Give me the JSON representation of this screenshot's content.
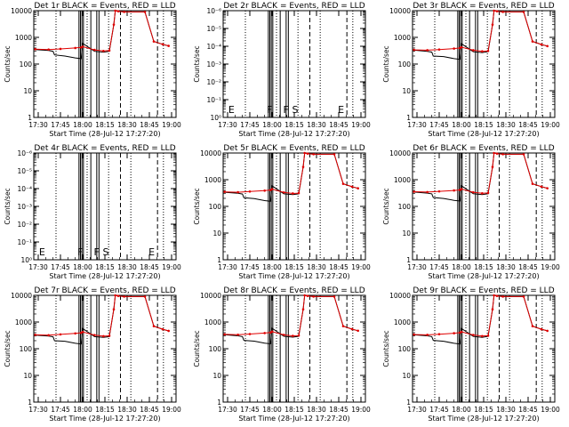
{
  "colors": {
    "events": "#000000",
    "lld": "#e00000"
  },
  "chart_data": [
    {
      "type": "line",
      "title": "Det 1r BLACK = Events, RED = LLD",
      "xlabel": "Start Time (28-Jul-12 17:27:20)",
      "ylabel": "Counts/sec",
      "yscale": "log",
      "ylim": [
        1,
        10000
      ],
      "ytick_labels": [
        "1",
        "10",
        "100",
        "1000",
        "10000"
      ],
      "xlim": [
        "17:27",
        "19:03"
      ],
      "xtick_labels": [
        "17:30",
        "17:45",
        "18:00",
        "18:15",
        "18:30",
        "18:45",
        "19:00"
      ],
      "grid": false,
      "has_data": true,
      "mode_letters": [],
      "series": [
        {
          "name": "Events",
          "x": [
            "17:28",
            "17:37",
            "17:40",
            "17:41",
            "17:48",
            "17:55",
            "17:59",
            "18:00",
            "18:08",
            "18:14",
            "18:18",
            "18:21",
            "18:22",
            "18:24",
            "18:28",
            "18:42",
            "18:48",
            "18:54",
            "18:58"
          ],
          "values": [
            350,
            320,
            300,
            220,
            200,
            170,
            160,
            600,
            300,
            280,
            300,
            3000,
            10000,
            9500,
            9000,
            9000,
            700,
            550,
            480
          ]
        },
        {
          "name": "LLD",
          "x": [
            "17:28",
            "17:37",
            "17:45",
            "17:55",
            "17:59",
            "18:00",
            "18:08",
            "18:14",
            "18:18",
            "18:21",
            "18:22",
            "18:24",
            "18:28",
            "18:42",
            "18:48",
            "18:54",
            "18:58"
          ],
          "values": [
            360,
            350,
            370,
            400,
            420,
            450,
            340,
            310,
            320,
            3000,
            10000,
            9500,
            9000,
            9000,
            700,
            550,
            480
          ]
        }
      ]
    },
    {
      "type": "line",
      "title": "Det 2r BLACK = Events, RED = LLD",
      "xlabel": "Start Time (28-Jul-12 17:27:20)",
      "ylabel": "Counts/sec",
      "yscale": "log",
      "ylim": [
        1e-06,
        1
      ],
      "ytick_labels": [
        "10⁰",
        "10⁻¹",
        "10⁻²",
        "10⁻³",
        "10⁻⁴",
        "10⁻⁵",
        "10⁻⁶"
      ],
      "xlim": [
        "17:27",
        "19:03"
      ],
      "xtick_labels": [
        "17:30",
        "17:45",
        "18:00",
        "18:15",
        "18:30",
        "18:45",
        "19:00"
      ],
      "grid": false,
      "has_data": false,
      "mode_letters": [
        "E",
        "F",
        "F",
        "S",
        "E"
      ],
      "series": []
    },
    {
      "type": "line",
      "title": "Det 3r BLACK = Events, RED = LLD",
      "xlabel": "Start Time (28-Jul-12 17:27:20)",
      "ylabel": "Counts/sec",
      "yscale": "log",
      "ylim": [
        1,
        10000
      ],
      "ytick_labels": [
        "1",
        "10",
        "100",
        "1000",
        "10000"
      ],
      "xlim": [
        "17:27",
        "19:03"
      ],
      "xtick_labels": [
        "17:30",
        "17:45",
        "18:00",
        "18:15",
        "18:30",
        "18:45",
        "19:00"
      ],
      "grid": false,
      "has_data": true,
      "mode_letters": [],
      "series": [
        {
          "name": "Events",
          "x": [
            "17:28",
            "17:37",
            "17:40",
            "17:41",
            "17:48",
            "17:55",
            "17:59",
            "18:00",
            "18:08",
            "18:14",
            "18:18",
            "18:21",
            "18:22",
            "18:24",
            "18:28",
            "18:42",
            "18:48",
            "18:54",
            "18:58"
          ],
          "values": [
            330,
            300,
            280,
            200,
            190,
            160,
            150,
            580,
            290,
            270,
            290,
            3000,
            10000,
            9500,
            9000,
            9000,
            700,
            540,
            470
          ]
        },
        {
          "name": "LLD",
          "x": [
            "17:28",
            "17:37",
            "17:45",
            "17:55",
            "17:59",
            "18:00",
            "18:08",
            "18:14",
            "18:18",
            "18:21",
            "18:22",
            "18:24",
            "18:28",
            "18:42",
            "18:48",
            "18:54",
            "18:58"
          ],
          "values": [
            340,
            330,
            350,
            380,
            400,
            430,
            330,
            300,
            310,
            3000,
            10000,
            9500,
            9000,
            9000,
            700,
            540,
            470
          ]
        }
      ]
    },
    {
      "type": "line",
      "title": "Det 4r BLACK = Events, RED = LLD",
      "xlabel": "Start Time (28-Jul-12 17:27:20)",
      "ylabel": "Counts/sec",
      "yscale": "log",
      "ylim": [
        1e-06,
        1
      ],
      "ytick_labels": [
        "10⁰",
        "10⁻¹",
        "10⁻²",
        "10⁻³",
        "10⁻⁴",
        "10⁻⁵",
        "10⁻⁶"
      ],
      "xlim": [
        "17:27",
        "19:03"
      ],
      "xtick_labels": [
        "17:30",
        "17:45",
        "18:00",
        "18:15",
        "18:30",
        "18:45",
        "19:00"
      ],
      "grid": false,
      "has_data": false,
      "mode_letters": [
        "E",
        "F",
        "F",
        "S",
        "E"
      ],
      "series": []
    },
    {
      "type": "line",
      "title": "Det 5r BLACK = Events, RED = LLD",
      "xlabel": "Start Time (28-Jul-12 17:27:20)",
      "ylabel": "Counts/sec",
      "yscale": "log",
      "ylim": [
        1,
        10000
      ],
      "ytick_labels": [
        "1",
        "10",
        "100",
        "1000",
        "10000"
      ],
      "xlim": [
        "17:27",
        "19:03"
      ],
      "xtick_labels": [
        "17:30",
        "17:45",
        "18:00",
        "18:15",
        "18:30",
        "18:45",
        "19:00"
      ],
      "grid": false,
      "has_data": true,
      "mode_letters": [],
      "series": [
        {
          "name": "Events",
          "x": [
            "17:28",
            "17:37",
            "17:40",
            "17:41",
            "17:48",
            "17:55",
            "17:59",
            "18:00",
            "18:08",
            "18:14",
            "18:18",
            "18:21",
            "18:22",
            "18:24",
            "18:28",
            "18:42",
            "18:48",
            "18:54",
            "18:58"
          ],
          "values": [
            340,
            310,
            290,
            210,
            195,
            165,
            155,
            590,
            295,
            275,
            295,
            3000,
            10000,
            9500,
            9000,
            9000,
            700,
            545,
            475
          ]
        },
        {
          "name": "LLD",
          "x": [
            "17:28",
            "17:37",
            "17:45",
            "17:55",
            "17:59",
            "18:00",
            "18:08",
            "18:14",
            "18:18",
            "18:21",
            "18:22",
            "18:24",
            "18:28",
            "18:42",
            "18:48",
            "18:54",
            "18:58"
          ],
          "values": [
            350,
            340,
            360,
            390,
            410,
            440,
            335,
            305,
            315,
            3000,
            10000,
            9500,
            9000,
            9000,
            700,
            545,
            475
          ]
        }
      ]
    },
    {
      "type": "line",
      "title": "Det 6r BLACK = Events, RED = LLD",
      "xlabel": "Start Time (28-Jul-12 17:27:20)",
      "ylabel": "Counts/sec",
      "yscale": "log",
      "ylim": [
        1,
        10000
      ],
      "ytick_labels": [
        "1",
        "10",
        "100",
        "1000",
        "10000"
      ],
      "xlim": [
        "17:27",
        "19:03"
      ],
      "xtick_labels": [
        "17:30",
        "17:45",
        "18:00",
        "18:15",
        "18:30",
        "18:45",
        "19:00"
      ],
      "grid": false,
      "has_data": true,
      "mode_letters": [],
      "series": [
        {
          "name": "Events",
          "x": [
            "17:28",
            "17:37",
            "17:40",
            "17:41",
            "17:48",
            "17:55",
            "17:59",
            "18:00",
            "18:08",
            "18:14",
            "18:18",
            "18:21",
            "18:22",
            "18:24",
            "18:28",
            "18:42",
            "18:48",
            "18:54",
            "18:58"
          ],
          "values": [
            345,
            315,
            295,
            215,
            198,
            168,
            158,
            595,
            298,
            278,
            298,
            3000,
            10000,
            9500,
            9000,
            9000,
            700,
            548,
            478
          ]
        },
        {
          "name": "LLD",
          "x": [
            "17:28",
            "17:37",
            "17:45",
            "17:55",
            "17:59",
            "18:00",
            "18:08",
            "18:14",
            "18:18",
            "18:21",
            "18:22",
            "18:24",
            "18:28",
            "18:42",
            "18:48",
            "18:54",
            "18:58"
          ],
          "values": [
            355,
            345,
            365,
            395,
            415,
            445,
            338,
            308,
            318,
            3000,
            10000,
            9500,
            9000,
            9000,
            700,
            548,
            478
          ]
        }
      ]
    },
    {
      "type": "line",
      "title": "Det 7r BLACK = Events, RED = LLD",
      "xlabel": "Start Time (28-Jul-12 17:27:20)",
      "ylabel": "Counts/sec",
      "yscale": "log",
      "ylim": [
        1,
        10000
      ],
      "ytick_labels": [
        "1",
        "10",
        "100",
        "1000",
        "10000"
      ],
      "xlim": [
        "17:27",
        "19:03"
      ],
      "xtick_labels": [
        "17:30",
        "17:45",
        "18:00",
        "18:15",
        "18:30",
        "18:45",
        "19:00"
      ],
      "grid": false,
      "has_data": true,
      "mode_letters": [],
      "series": [
        {
          "name": "Events",
          "x": [
            "17:28",
            "17:37",
            "17:40",
            "17:41",
            "17:48",
            "17:55",
            "17:59",
            "18:00",
            "18:08",
            "18:14",
            "18:18",
            "18:21",
            "18:22",
            "18:24",
            "18:28",
            "18:42",
            "18:48",
            "18:54",
            "18:58"
          ],
          "values": [
            320,
            300,
            280,
            200,
            190,
            160,
            150,
            570,
            285,
            265,
            285,
            3000,
            10000,
            9500,
            9000,
            9000,
            700,
            535,
            465
          ]
        },
        {
          "name": "LLD",
          "x": [
            "17:28",
            "17:37",
            "17:45",
            "17:55",
            "17:59",
            "18:00",
            "18:08",
            "18:14",
            "18:18",
            "18:21",
            "18:22",
            "18:24",
            "18:28",
            "18:42",
            "18:48",
            "18:54",
            "18:58"
          ],
          "values": [
            330,
            320,
            345,
            375,
            395,
            425,
            325,
            295,
            305,
            3000,
            10000,
            9500,
            9000,
            9000,
            700,
            535,
            465
          ]
        }
      ]
    },
    {
      "type": "line",
      "title": "Det 8r BLACK = Events, RED = LLD",
      "xlabel": "Start Time (28-Jul-12 17:27:20)",
      "ylabel": "Counts/sec",
      "yscale": "log",
      "ylim": [
        1,
        10000
      ],
      "ytick_labels": [
        "1",
        "10",
        "100",
        "1000",
        "10000"
      ],
      "xlim": [
        "17:27",
        "19:03"
      ],
      "xtick_labels": [
        "17:30",
        "17:45",
        "18:00",
        "18:15",
        "18:30",
        "18:45",
        "19:00"
      ],
      "grid": false,
      "has_data": true,
      "mode_letters": [],
      "series": [
        {
          "name": "Events",
          "x": [
            "17:28",
            "17:37",
            "17:40",
            "17:41",
            "17:48",
            "17:55",
            "17:59",
            "18:00",
            "18:08",
            "18:14",
            "18:18",
            "18:21",
            "18:22",
            "18:24",
            "18:28",
            "18:42",
            "18:48",
            "18:54",
            "18:58"
          ],
          "values": [
            335,
            305,
            285,
            205,
            192,
            162,
            152,
            585,
            292,
            272,
            292,
            3000,
            10000,
            9500,
            9000,
            9000,
            700,
            542,
            472
          ]
        },
        {
          "name": "LLD",
          "x": [
            "17:28",
            "17:37",
            "17:45",
            "17:55",
            "17:59",
            "18:00",
            "18:08",
            "18:14",
            "18:18",
            "18:21",
            "18:22",
            "18:24",
            "18:28",
            "18:42",
            "18:48",
            "18:54",
            "18:58"
          ],
          "values": [
            345,
            335,
            355,
            385,
            405,
            435,
            332,
            302,
            312,
            3000,
            10000,
            9500,
            9000,
            9000,
            700,
            542,
            472
          ]
        }
      ]
    },
    {
      "type": "line",
      "title": "Det 9r BLACK = Events, RED = LLD",
      "xlabel": "Start Time (28-Jul-12 17:27:20)",
      "ylabel": "Counts/sec",
      "yscale": "log",
      "ylim": [
        1,
        10000
      ],
      "ytick_labels": [
        "1",
        "10",
        "100",
        "1000",
        "10000"
      ],
      "xlim": [
        "17:27",
        "19:03"
      ],
      "xtick_labels": [
        "17:30",
        "17:45",
        "18:00",
        "18:15",
        "18:30",
        "18:45",
        "19:00"
      ],
      "grid": false,
      "has_data": true,
      "mode_letters": [],
      "series": [
        {
          "name": "Events",
          "x": [
            "17:28",
            "17:37",
            "17:40",
            "17:41",
            "17:48",
            "17:55",
            "17:59",
            "18:00",
            "18:08",
            "18:14",
            "18:18",
            "18:21",
            "18:22",
            "18:24",
            "18:28",
            "18:42",
            "18:48",
            "18:54",
            "18:58"
          ],
          "values": [
            330,
            305,
            285,
            205,
            190,
            160,
            150,
            575,
            290,
            268,
            290,
            3000,
            10000,
            9500,
            9000,
            9000,
            700,
            538,
            468
          ]
        },
        {
          "name": "LLD",
          "x": [
            "17:28",
            "17:37",
            "17:45",
            "17:55",
            "17:59",
            "18:00",
            "18:08",
            "18:14",
            "18:18",
            "18:21",
            "18:22",
            "18:24",
            "18:28",
            "18:42",
            "18:48",
            "18:54",
            "18:58"
          ],
          "values": [
            340,
            330,
            350,
            380,
            400,
            430,
            328,
            298,
            308,
            3000,
            10000,
            9500,
            9000,
            9000,
            700,
            538,
            468
          ]
        }
      ]
    }
  ]
}
